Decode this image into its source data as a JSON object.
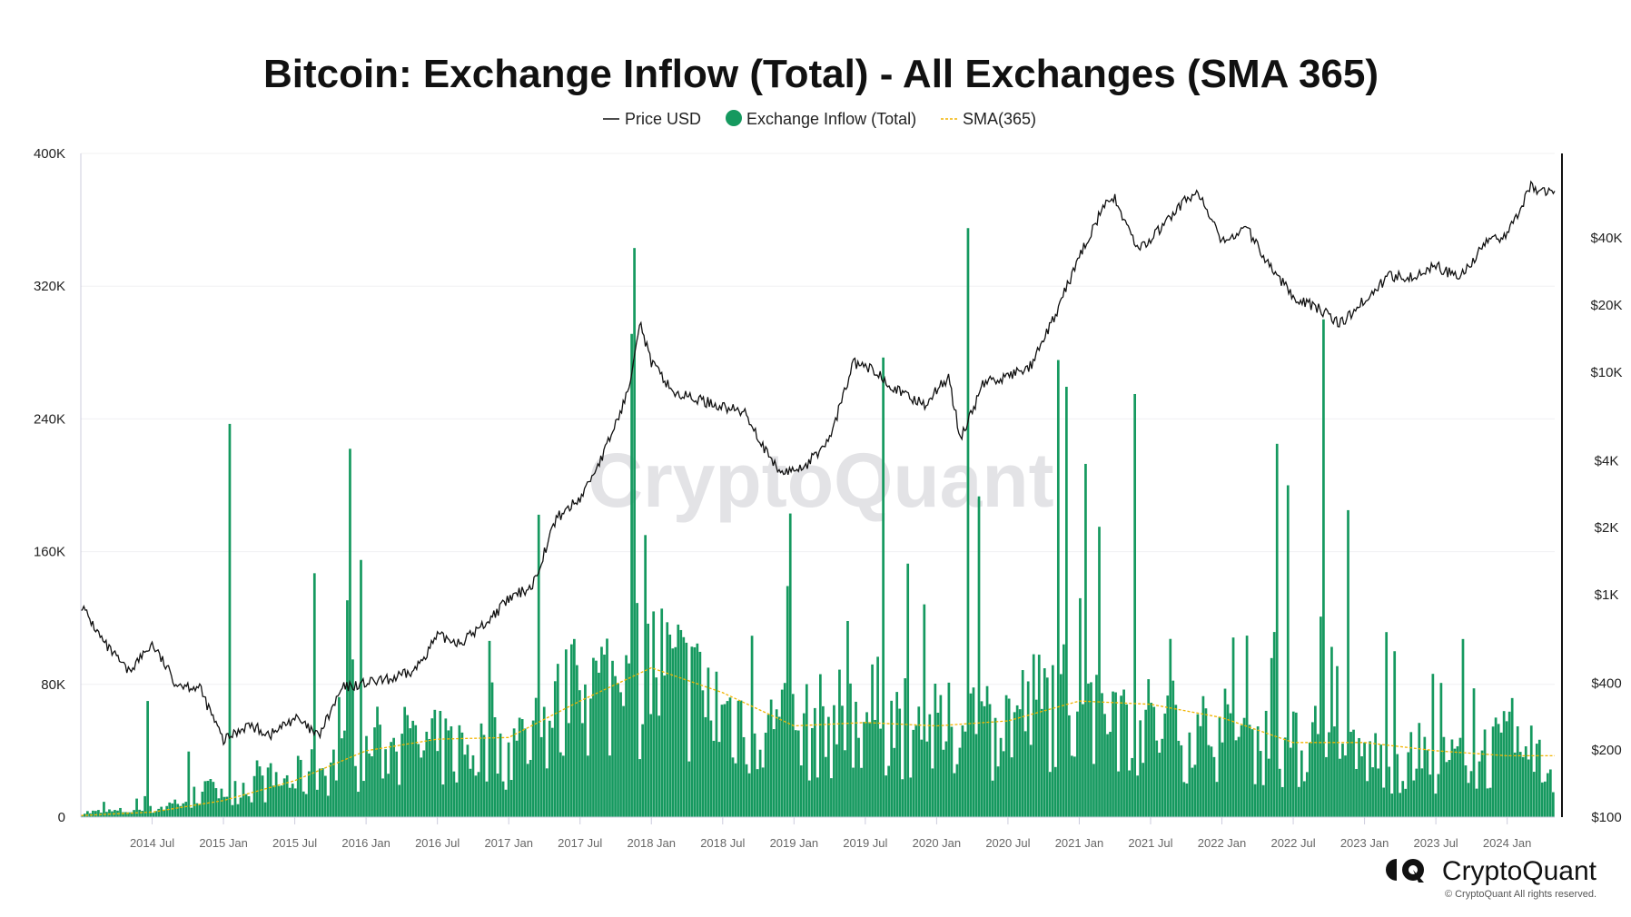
{
  "chart_data": {
    "type": "bar",
    "title": "Bitcoin: Exchange Inflow (Total) - All Exchanges (SMA 365)",
    "legend": {
      "placement": "top-center",
      "entries": [
        {
          "name": "Price USD",
          "marker": "line",
          "color": "#111111"
        },
        {
          "name": "Exchange Inflow (Total)",
          "marker": "dot",
          "color": "#15995f"
        },
        {
          "name": "SMA(365)",
          "marker": "dashed-line",
          "color": "#f2b400"
        }
      ]
    },
    "x_range": [
      "2014-01",
      "2024-05"
    ],
    "x_ticks": [
      "2014 Jul",
      "2015 Jan",
      "2015 Jul",
      "2016 Jan",
      "2016 Jul",
      "2017 Jan",
      "2017 Jul",
      "2018 Jan",
      "2018 Jul",
      "2019 Jan",
      "2019 Jul",
      "2020 Jan",
      "2020 Jul",
      "2021 Jan",
      "2021 Jul",
      "2022 Jan",
      "2022 Jul",
      "2023 Jan",
      "2023 Jul",
      "2024 Jan"
    ],
    "y_left": {
      "scale": "linear",
      "range": [
        0,
        400000
      ],
      "ticks": [
        "0",
        "80K",
        "160K",
        "240K",
        "320K",
        "400K"
      ],
      "tick_values": [
        0,
        80000,
        160000,
        240000,
        320000,
        400000
      ]
    },
    "y_right": {
      "scale": "log",
      "range": [
        100,
        96000
      ],
      "ticks": [
        "$100",
        "$200",
        "$400",
        "$1K",
        "$2K",
        "$4K",
        "$10K",
        "$20K",
        "$40K"
      ],
      "tick_values": [
        100,
        200,
        400,
        1000,
        2000,
        4000,
        10000,
        20000,
        40000
      ]
    },
    "grid": true,
    "series": [
      {
        "name": "Exchange Inflow (Total)",
        "type": "bar",
        "axis": "left",
        "typical_level": [
          [
            "2014-01",
            3000
          ],
          [
            "2014-07",
            5000
          ],
          [
            "2015-01",
            20000
          ],
          [
            "2015-07",
            25000
          ],
          [
            "2016-01",
            45000
          ],
          [
            "2016-07",
            45000
          ],
          [
            "2017-01",
            45000
          ],
          [
            "2017-07",
            80000
          ],
          [
            "2018-01",
            100000
          ],
          [
            "2018-07",
            70000
          ],
          [
            "2019-01",
            55000
          ],
          [
            "2019-07",
            70000
          ],
          [
            "2020-01",
            55000
          ],
          [
            "2020-07",
            65000
          ],
          [
            "2021-01",
            85000
          ],
          [
            "2021-07",
            60000
          ],
          [
            "2022-01",
            55000
          ],
          [
            "2022-07",
            45000
          ],
          [
            "2023-01",
            40000
          ],
          [
            "2023-07",
            35000
          ],
          [
            "2024-01",
            45000
          ],
          [
            "2024-05",
            30000
          ]
        ],
        "spikes": [
          [
            "2014-06",
            70000
          ],
          [
            "2015-01",
            237000
          ],
          [
            "2015-08",
            147000
          ],
          [
            "2015-11",
            222000
          ],
          [
            "2015-12",
            155000
          ],
          [
            "2017-11",
            343000
          ],
          [
            "2017-12",
            170000
          ],
          [
            "2018-12",
            183000
          ],
          [
            "2019-08",
            277000
          ],
          [
            "2020-03",
            355000
          ],
          [
            "2021-02",
            175000
          ],
          [
            "2021-05",
            255000
          ],
          [
            "2022-05",
            225000
          ],
          [
            "2022-06",
            200000
          ],
          [
            "2022-09",
            300000
          ],
          [
            "2022-11",
            185000
          ],
          [
            "2023-03",
            100000
          ]
        ]
      },
      {
        "name": "SMA(365)",
        "type": "line",
        "axis": "left",
        "points": [
          [
            "2014-01",
            1000
          ],
          [
            "2014-07",
            3000
          ],
          [
            "2015-01",
            10000
          ],
          [
            "2015-07",
            22000
          ],
          [
            "2016-01",
            40000
          ],
          [
            "2016-07",
            47000
          ],
          [
            "2017-01",
            48000
          ],
          [
            "2017-07",
            70000
          ],
          [
            "2018-01",
            90000
          ],
          [
            "2018-07",
            75000
          ],
          [
            "2019-01",
            55000
          ],
          [
            "2019-07",
            57000
          ],
          [
            "2020-01",
            55000
          ],
          [
            "2020-07",
            58000
          ],
          [
            "2021-01",
            70000
          ],
          [
            "2021-07",
            68000
          ],
          [
            "2022-01",
            60000
          ],
          [
            "2022-07",
            45000
          ],
          [
            "2023-01",
            45000
          ],
          [
            "2023-07",
            40000
          ],
          [
            "2024-01",
            37000
          ],
          [
            "2024-05",
            37000
          ]
        ]
      },
      {
        "name": "Price USD",
        "type": "line",
        "axis": "right",
        "points": [
          [
            "2014-01",
            900
          ],
          [
            "2014-03",
            600
          ],
          [
            "2014-05",
            450
          ],
          [
            "2014-07",
            600
          ],
          [
            "2014-09",
            400
          ],
          [
            "2014-11",
            380
          ],
          [
            "2015-01",
            220
          ],
          [
            "2015-03",
            260
          ],
          [
            "2015-05",
            235
          ],
          [
            "2015-07",
            280
          ],
          [
            "2015-09",
            230
          ],
          [
            "2015-11",
            380
          ],
          [
            "2016-01",
            400
          ],
          [
            "2016-03",
            415
          ],
          [
            "2016-05",
            450
          ],
          [
            "2016-07",
            650
          ],
          [
            "2016-09",
            610
          ],
          [
            "2016-11",
            740
          ],
          [
            "2017-01",
            950
          ],
          [
            "2017-03",
            1100
          ],
          [
            "2017-05",
            2200
          ],
          [
            "2017-07",
            2700
          ],
          [
            "2017-09",
            4300
          ],
          [
            "2017-11",
            8000
          ],
          [
            "2017-12",
            17000
          ],
          [
            "2018-01",
            11000
          ],
          [
            "2018-03",
            8000
          ],
          [
            "2018-05",
            7500
          ],
          [
            "2018-07",
            7000
          ],
          [
            "2018-09",
            6500
          ],
          [
            "2018-11",
            4000
          ],
          [
            "2018-12",
            3500
          ],
          [
            "2019-02",
            3800
          ],
          [
            "2019-04",
            5000
          ],
          [
            "2019-06",
            11000
          ],
          [
            "2019-08",
            10000
          ],
          [
            "2019-10",
            8000
          ],
          [
            "2019-12",
            7200
          ],
          [
            "2020-02",
            9500
          ],
          [
            "2020-03",
            5000
          ],
          [
            "2020-05",
            9000
          ],
          [
            "2020-07",
            9500
          ],
          [
            "2020-09",
            10700
          ],
          [
            "2020-11",
            18000
          ],
          [
            "2021-01",
            33000
          ],
          [
            "2021-03",
            55000
          ],
          [
            "2021-04",
            60000
          ],
          [
            "2021-06",
            35000
          ],
          [
            "2021-08",
            45000
          ],
          [
            "2021-10",
            60000
          ],
          [
            "2021-11",
            64000
          ],
          [
            "2022-01",
            38000
          ],
          [
            "2022-03",
            45000
          ],
          [
            "2022-05",
            30000
          ],
          [
            "2022-07",
            22000
          ],
          [
            "2022-09",
            19500
          ],
          [
            "2022-11",
            16500
          ],
          [
            "2023-01",
            21000
          ],
          [
            "2023-03",
            27000
          ],
          [
            "2023-05",
            27000
          ],
          [
            "2023-07",
            30000
          ],
          [
            "2023-09",
            26500
          ],
          [
            "2023-11",
            37000
          ],
          [
            "2024-01",
            42000
          ],
          [
            "2024-03",
            68000
          ],
          [
            "2024-05",
            62000
          ]
        ]
      }
    ]
  },
  "watermark": "CryptoQuant",
  "brand": {
    "logo_text": "CryptoQuant",
    "copyright": "© CryptoQuant All rights reserved."
  }
}
